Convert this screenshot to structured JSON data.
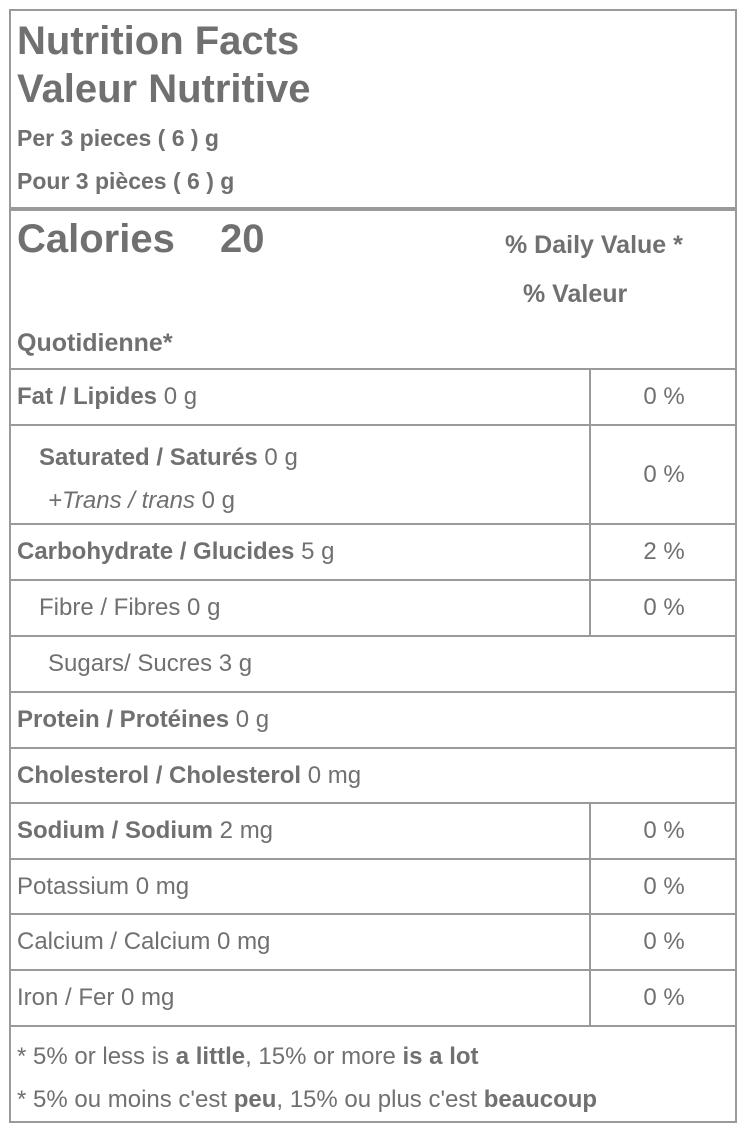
{
  "header": {
    "title": "Nutrition Facts",
    "title_fr": "Valeur Nutritive",
    "serving": "Per 3 pieces ( 6 ) g",
    "serving_fr": "Pour 3 pièces ( 6 ) g"
  },
  "calories": {
    "label": "Calories",
    "value": "20",
    "daily_value": [
      "% Daily Value *",
      "% Valeur",
      "Quotidienne*"
    ]
  },
  "rows": [
    {
      "label": "Fat / Lipides",
      "amount": "0 g",
      "dv": "0 %"
    },
    {
      "label": "Saturated / Saturés",
      "amount": "0 g",
      "sub_label": "+Trans / trans",
      "sub_amount": "0 g",
      "dv": "0 %"
    },
    {
      "label": "Carbohydrate / Glucides",
      "amount": "5 g",
      "dv": "2 %"
    },
    {
      "label": "Fibre / Fibres",
      "amount": "0 g",
      "dv": "0 %"
    },
    {
      "label": "Sugars/ Sucres",
      "amount": "3 g"
    },
    {
      "label": "Protein / Protéines",
      "amount": "0 g"
    },
    {
      "label": "Cholesterol / Cholesterol",
      "amount": "0 mg"
    },
    {
      "label": "Sodium / Sodium",
      "amount": "2 mg",
      "dv": "0 %"
    },
    {
      "label": "Potassium",
      "amount": "0 mg",
      "dv": "0 %"
    },
    {
      "label": "Calcium / Calcium",
      "amount": "0 mg",
      "dv": "0 %"
    },
    {
      "label": "Iron / Fer",
      "amount": "0 mg",
      "dv": "0 %"
    }
  ],
  "footnotes": [
    [
      "* 5% or less is",
      "a little",
      ", 15% or more",
      "is a lot"
    ],
    [
      "* 5% ou moins c'est",
      "peu",
      ", 15% ou plus c'est",
      "beaucoup"
    ]
  ]
}
